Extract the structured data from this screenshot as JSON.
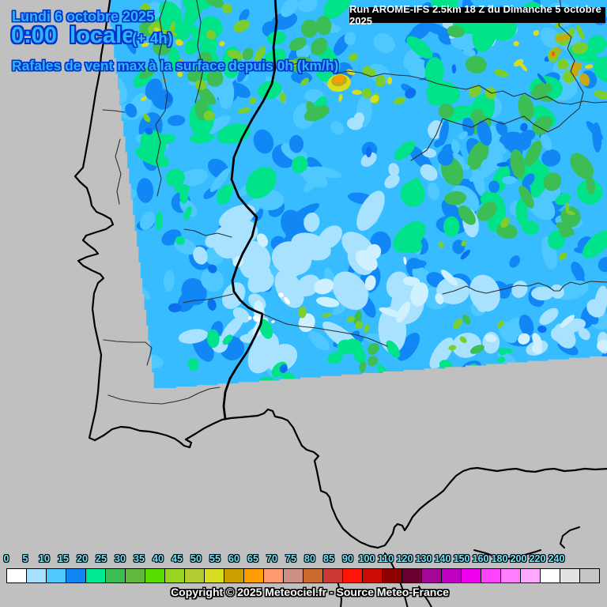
{
  "header": {
    "date_line": "Lundi 6 octobre 2025",
    "time_line": "0:00  locale",
    "time_offset": "(+ 4h)",
    "subtitle": "Rafales de vent max à la surface depuis 0h (km/h)",
    "text_color": "#2FB3FF",
    "outline_color": "#0033CC"
  },
  "run_box": {
    "label": "Run AROME-IFS 2.5km 18 Z du Dimanche 5 octobre 2025",
    "bg_color": "#000000",
    "text_color": "#FFFFFF"
  },
  "scale": {
    "labels": [
      "0",
      "5",
      "10",
      "15",
      "20",
      "25",
      "30",
      "35",
      "40",
      "45",
      "50",
      "55",
      "60",
      "65",
      "70",
      "75",
      "80",
      "85",
      "90",
      "100",
      "110",
      "120",
      "130",
      "140",
      "150",
      "160",
      "180",
      "200",
      "220",
      "240"
    ],
    "cell_colors": [
      "#FFFFFF",
      "#A8DFFF",
      "#4FC8FF",
      "#1187F5",
      "#00E993",
      "#3CBE54",
      "#62B83A",
      "#55DD00",
      "#97D522",
      "#B3CC33",
      "#D6DE1F",
      "#CC9E00",
      "#FF9E00",
      "#FF9A70",
      "#CC8F85",
      "#CC6A2E",
      "#CC3B33",
      "#FF1505",
      "#CC0B05",
      "#8F0000",
      "#6B0030",
      "#A6059A",
      "#C000C0",
      "#EE00EE",
      "#FF44FF",
      "#FF80FF",
      "#FFA8FF",
      "#FFFFFF",
      "#E2E2E2",
      "#C6C6C6"
    ],
    "label_color": "#70E6FF",
    "label_outline": "#000000"
  },
  "footer": {
    "copyright": "Copyright © 2025 Meteociel.fr - Source Meteo-France",
    "text_color": "#FFFFFF",
    "outline_color": "#000000"
  },
  "map": {
    "background": "#C0C0C0"
  }
}
